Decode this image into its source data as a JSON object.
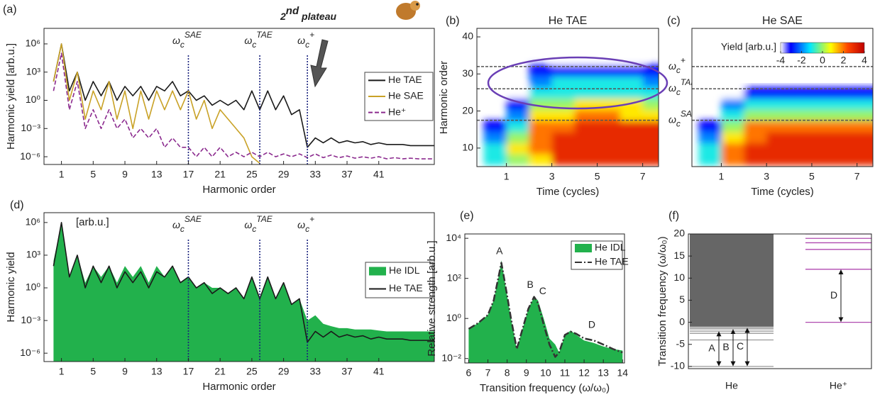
{
  "chart_data": [
    {
      "type": "line",
      "panel": "(a)",
      "ylog": true,
      "xlabel": "Harmonic order",
      "ylabel": "Harmonic yield  [arb.u.]",
      "xlim": [
        -1.2,
        48
      ],
      "ylim": [
        1.5e-07,
        45000000.0
      ],
      "xticks": [
        1,
        5,
        9,
        13,
        17,
        21,
        25,
        29,
        33,
        37,
        41
      ],
      "yticks": [
        {
          "value": 1e-06,
          "label": "10⁻⁶"
        },
        {
          "value": 0.001,
          "label": "10⁻³"
        },
        {
          "value": 1,
          "label": "10⁰"
        },
        {
          "value": 1000,
          "label": "10³"
        },
        {
          "value": 1000000,
          "label": "10⁶"
        }
      ],
      "legend": "center right",
      "annotation": {
        "main": "2",
        "sup": "nd",
        "rest": " plateau"
      },
      "vlines": [
        {
          "value": 17,
          "symbol": "ω",
          "sub": "c",
          "sup": "SAE",
          "color": "#b8951c"
        },
        {
          "value": 26,
          "symbol": "ω",
          "sub": "c",
          "sup": "TAE",
          "color": "#111111"
        },
        {
          "value": 32,
          "symbol": "ω",
          "sub": "c",
          "sup": "+",
          "color": "#7a1f8a"
        }
      ],
      "x": [
        0,
        1,
        2,
        3,
        4,
        5,
        6,
        7,
        8,
        9,
        10,
        11,
        12,
        13,
        14,
        15,
        16,
        17,
        18,
        19,
        20,
        21,
        22,
        23,
        24,
        25,
        26,
        27,
        28,
        29,
        30,
        31,
        32,
        33,
        34,
        35,
        36,
        37,
        38,
        39,
        40,
        41,
        42,
        43,
        44,
        45,
        46,
        47,
        48
      ],
      "series": [
        {
          "name": "He TAE",
          "color": "#1a1a1a",
          "style": "line",
          "values": [
            100.0,
            1000000.0,
            10.0,
            1000.0,
            1,
            100.0,
            3,
            100.0,
            1,
            30.0,
            3,
            30.0,
            1,
            30.0,
            10.0,
            100.0,
            3,
            10.0,
            1,
            3,
            0.3,
            1,
            0.3,
            1,
            0.1,
            10.0,
            0.1,
            10.0,
            0.1,
            3,
            0.03,
            0.1,
            1e-05,
            0.0001,
            3e-05,
            0.0001,
            3e-05,
            5e-05,
            3e-05,
            4e-05,
            2e-05,
            3e-05,
            2e-05,
            2e-05,
            2e-05,
            1.5e-05,
            1.5e-05,
            1.5e-05,
            1.5e-05
          ]
        },
        {
          "name": "He SAE",
          "color": "#c9a227",
          "style": "line",
          "values": [
            100.0,
            1000000.0,
            1,
            1000.0,
            0.01,
            10.0,
            0.1,
            100.0,
            0.01,
            10.0,
            0.001,
            10.0,
            0.01,
            10.0,
            0.1,
            10.0,
            0.1,
            10.0,
            0.01,
            1,
            0.001,
            0.1,
            0.01,
            0.001,
            0.0001,
            1e-06,
            2e-07,
            null,
            null,
            null,
            null,
            null,
            null,
            null,
            null,
            null,
            null,
            null,
            null,
            null,
            null,
            null,
            null,
            null,
            null,
            null,
            null,
            null,
            null
          ]
        },
        {
          "name": "He⁺",
          "color": "#8b2a8e",
          "style": "dashed",
          "values": [
            10.0,
            100000.0,
            0.1,
            100.0,
            0.001,
            0.1,
            0.001,
            0.1,
            0.001,
            0.01,
            0.0001,
            0.001,
            0.0001,
            0.001,
            1e-05,
            0.0001,
            1e-05,
            1e-05,
            1e-06,
            1e-05,
            1e-06,
            1e-05,
            1e-06,
            3e-06,
            1e-06,
            3e-06,
            1e-06,
            3e-06,
            1e-06,
            2e-06,
            1e-06,
            2e-06,
            8e-07,
            2e-06,
            8e-07,
            1.5e-06,
            8e-07,
            1.2e-06,
            7e-07,
            1e-06,
            7e-07,
            1e-06,
            6e-07,
            8e-07,
            6e-07,
            7e-07,
            6e-07,
            6e-07,
            6e-07
          ]
        }
      ]
    },
    {
      "type": "heatmap",
      "panel": "(b)",
      "title": "He TAE",
      "xlabel": "Time (cycles)",
      "ylabel": "Harmonic order",
      "xlim": [
        -0.3,
        7.7
      ],
      "ylim": [
        5,
        42.3
      ],
      "xticks": [
        1,
        3,
        5,
        7
      ],
      "yticks": [
        10,
        20,
        30,
        40
      ],
      "clim": [
        -4,
        4
      ],
      "hlines": [
        {
          "value": 32,
          "symbol": "ω",
          "sub": "c",
          "sup": "+",
          "color": "#7a1f8a"
        },
        {
          "value": 26,
          "symbol": "ω",
          "sub": "c",
          "sup": "TAE",
          "color": "#111111"
        },
        {
          "value": 17.5,
          "symbol": "ω",
          "sub": "c",
          "sup": "SAE",
          "color": "#b8951c"
        }
      ],
      "x": [
        0.5,
        1.5,
        2.5,
        3.5,
        4.5,
        5.5,
        6.5,
        7.5
      ],
      "y": [
        7,
        10,
        13,
        16,
        19,
        22,
        25,
        28,
        31,
        34,
        37,
        40
      ],
      "z": [
        [
          -1,
          0,
          1,
          3,
          3,
          3,
          3,
          3
        ],
        [
          -1,
          1,
          2,
          3,
          3,
          3,
          3,
          3
        ],
        [
          -2,
          0,
          2,
          3,
          3,
          3,
          3,
          3
        ],
        [
          -3,
          -1,
          2,
          2,
          3,
          3,
          3,
          3
        ],
        [
          null,
          -2,
          1,
          1,
          2,
          2,
          1,
          1
        ],
        [
          null,
          -3,
          0,
          0,
          1,
          1,
          1,
          0
        ],
        [
          null,
          -4,
          -1,
          -1,
          -1,
          -1,
          -1,
          -1
        ],
        [
          null,
          null,
          -2,
          -1,
          -1,
          -1,
          -1,
          -2
        ],
        [
          null,
          null,
          -3,
          -3,
          -3,
          -3,
          -3,
          -3
        ],
        [
          null,
          null,
          null,
          -4,
          -4,
          -4,
          -4,
          null
        ],
        [
          null,
          null,
          null,
          null,
          null,
          null,
          null,
          null
        ],
        [
          null,
          null,
          null,
          null,
          null,
          null,
          null,
          null
        ]
      ]
    },
    {
      "type": "heatmap",
      "panel": "(c)",
      "title": "He SAE",
      "xlabel": "Time (cycles)",
      "xlim": [
        -0.3,
        7.7
      ],
      "ylim": [
        5,
        42.3
      ],
      "xticks": [
        1,
        3,
        5,
        7
      ],
      "clim": [
        -4,
        4
      ],
      "colorbar": {
        "label": "Yield [arb.u.]",
        "ticks": [
          -4,
          -2,
          0,
          2,
          4
        ]
      },
      "hlines": [
        32,
        26,
        17.5
      ],
      "x": [
        0.5,
        1.5,
        2.5,
        3.5,
        4.5,
        5.5,
        6.5,
        7.5
      ],
      "y": [
        7,
        10,
        13,
        16,
        19,
        22,
        25,
        28,
        31,
        34,
        37,
        40
      ],
      "z": [
        [
          -1,
          2,
          3,
          3,
          3,
          3,
          3,
          3
        ],
        [
          -1,
          2,
          3,
          3,
          3,
          3,
          3,
          3
        ],
        [
          -2,
          1,
          2,
          3,
          3,
          3,
          3,
          3
        ],
        [
          -3,
          0,
          2,
          2,
          2,
          2,
          2,
          2
        ],
        [
          null,
          -1,
          0,
          0,
          0,
          0,
          0,
          0
        ],
        [
          null,
          -2,
          -1,
          -1,
          -1,
          -1,
          -1,
          -1
        ],
        [
          null,
          -4,
          -3,
          -3,
          -3,
          -3,
          -3,
          -3
        ],
        [
          null,
          null,
          null,
          null,
          null,
          null,
          null,
          null
        ],
        [
          null,
          null,
          null,
          null,
          null,
          null,
          null,
          null
        ],
        [
          null,
          null,
          null,
          null,
          null,
          null,
          null,
          null
        ],
        [
          null,
          null,
          null,
          null,
          null,
          null,
          null,
          null
        ],
        [
          null,
          null,
          null,
          null,
          null,
          null,
          null,
          null
        ]
      ]
    },
    {
      "type": "area",
      "panel": "(d)",
      "ylog": true,
      "xlabel": "Harmonic order",
      "ylabel": "Harmonic yield",
      "ylabel_unit": "[arb.u.]",
      "xlim": [
        -1.2,
        48
      ],
      "ylim": [
        1.7e-07,
        8000000.0
      ],
      "xticks": [
        1,
        5,
        9,
        13,
        17,
        21,
        25,
        29,
        33,
        37,
        41
      ],
      "yticks": [
        {
          "value": 1e-06,
          "label": "10⁻⁶"
        },
        {
          "value": 0.001,
          "label": "10⁻³"
        },
        {
          "value": 1,
          "label": "10⁰"
        },
        {
          "value": 1000,
          "label": "10³"
        },
        {
          "value": 1000000,
          "label": "10⁶"
        }
      ],
      "legend": "center right",
      "vlines": [
        {
          "value": 17,
          "symbol": "ω",
          "sub": "c",
          "sup": "SAE",
          "color": "#b8951c"
        },
        {
          "value": 26,
          "symbol": "ω",
          "sub": "c",
          "sup": "TAE",
          "color": "#111111"
        },
        {
          "value": 32,
          "symbol": "ω",
          "sub": "c",
          "sup": "+",
          "color": "#7a1f8a"
        }
      ],
      "x": [
        0,
        1,
        2,
        3,
        4,
        5,
        6,
        7,
        8,
        9,
        10,
        11,
        12,
        13,
        14,
        15,
        16,
        17,
        18,
        19,
        20,
        21,
        22,
        23,
        24,
        25,
        26,
        27,
        28,
        29,
        30,
        31,
        32,
        33,
        34,
        35,
        36,
        37,
        38,
        39,
        40,
        41,
        42,
        43,
        44,
        45,
        46,
        47,
        48
      ],
      "series": [
        {
          "name": "He IDL",
          "color": "#22b14c",
          "style": "area",
          "values": [
            300.0,
            1000000.0,
            10.0,
            1000.0,
            3,
            100.0,
            10.0,
            100.0,
            3,
            100.0,
            10.0,
            100.0,
            3,
            100.0,
            10.0,
            100.0,
            3,
            10.0,
            1,
            3,
            1,
            1,
            0.3,
            1,
            0.1,
            10.0,
            0.1,
            10.0,
            0.1,
            3,
            0.03,
            0.1,
            0.001,
            0.003,
            0.0005,
            0.0003,
            0.0002,
            0.0002,
            0.00015,
            0.00015,
            0.00015,
            0.00012,
            0.0001,
            0.0001,
            0.0001,
            0.0001,
            0.0001,
            0.0001,
            0.0001
          ]
        },
        {
          "name": "He TAE",
          "color": "#1a1a1a",
          "style": "line",
          "values": [
            100.0,
            1000000.0,
            10.0,
            1000.0,
            1,
            100.0,
            3,
            100.0,
            1,
            30.0,
            3,
            30.0,
            1,
            30.0,
            10.0,
            100.0,
            3,
            10.0,
            1,
            3,
            0.3,
            1,
            0.3,
            1,
            0.1,
            10.0,
            0.1,
            10.0,
            0.1,
            3,
            0.03,
            0.1,
            1e-05,
            0.0001,
            3e-05,
            0.0001,
            3e-05,
            5e-05,
            3e-05,
            4e-05,
            2e-05,
            3e-05,
            2e-05,
            2e-05,
            2e-05,
            1.5e-05,
            1.5e-05,
            1.5e-05,
            1.5e-05
          ]
        }
      ]
    },
    {
      "type": "area",
      "panel": "(e)",
      "ylog": true,
      "xlabel": "Transition frequency (ω/ω₀)",
      "ylabel": "Relative strength [arb.u.]",
      "xlim": [
        5.8,
        14.1
      ],
      "ylim": [
        0.006,
        16500
      ],
      "xticks": [
        6,
        7,
        8,
        9,
        10,
        11,
        12,
        13,
        14
      ],
      "yticks": [
        {
          "value": 0.01,
          "label": "10⁻²"
        },
        {
          "value": 1,
          "label": "10⁰"
        },
        {
          "value": 100,
          "label": "10²"
        },
        {
          "value": 10000,
          "label": "10⁴"
        }
      ],
      "legend": "upper right",
      "peaks": [
        {
          "label": "A",
          "x": 7.6,
          "y": 2200
        },
        {
          "label": "B",
          "x": 9.2,
          "y": 45
        },
        {
          "label": "C",
          "x": 9.85,
          "y": 22
        },
        {
          "label": "D",
          "x": 12.4,
          "y": 0.45
        }
      ],
      "x": [
        6,
        6.5,
        7,
        7.3,
        7.6,
        7.7,
        7.9,
        8.2,
        8.5,
        8.8,
        9.1,
        9.4,
        9.6,
        9.9,
        10.2,
        10.5,
        10.7,
        11,
        11.3,
        11.6,
        12,
        12.5,
        13,
        13.5,
        14
      ],
      "series": [
        {
          "name": "He IDL",
          "color": "#22b14c",
          "style": "area",
          "values": [
            0.3,
            0.6,
            1.5,
            8,
            200,
            800,
            50,
            1,
            0.03,
            0.3,
            3,
            12,
            8,
            1,
            0.1,
            0.05,
            0.02,
            0.15,
            0.25,
            0.15,
            0.08,
            0.06,
            0.04,
            0.03,
            0.025
          ]
        },
        {
          "name": "He TAE",
          "color": "#333333",
          "style": "dashdot",
          "values": [
            0.3,
            0.6,
            1.5,
            8,
            200,
            600,
            50,
            1,
            0.03,
            0.3,
            3,
            12,
            6,
            0.5,
            0.05,
            0.012,
            0.02,
            0.15,
            0.22,
            0.17,
            0.1,
            0.08,
            0.05,
            0.03,
            0.02
          ]
        }
      ]
    },
    {
      "type": "levels",
      "panel": "(f)",
      "ylabel": "Transition frequency (ω/ω₀)",
      "ylim": [
        -10.5,
        20
      ],
      "yticks": [
        -10,
        -5,
        0,
        5,
        10,
        15,
        20
      ],
      "species": [
        {
          "name": "He",
          "color": "#9a9a9a",
          "continuum": [
            -1,
            20
          ],
          "levels": [
            -10,
            -4,
            -2.5,
            -2,
            -1.5,
            -1.2
          ],
          "transitions": [
            {
              "label": "A",
              "from": -10,
              "to": -2
            },
            {
              "label": "B",
              "from": -10,
              "to": -1.5
            },
            {
              "label": "C",
              "from": -10,
              "to": -1.2
            }
          ]
        },
        {
          "name": "He⁺",
          "color": "#b04ab0",
          "levels": [
            0,
            12,
            16.5,
            18,
            19,
            20
          ],
          "transitions": [
            {
              "label": "D",
              "from": 0,
              "to": 12
            }
          ]
        }
      ]
    }
  ]
}
